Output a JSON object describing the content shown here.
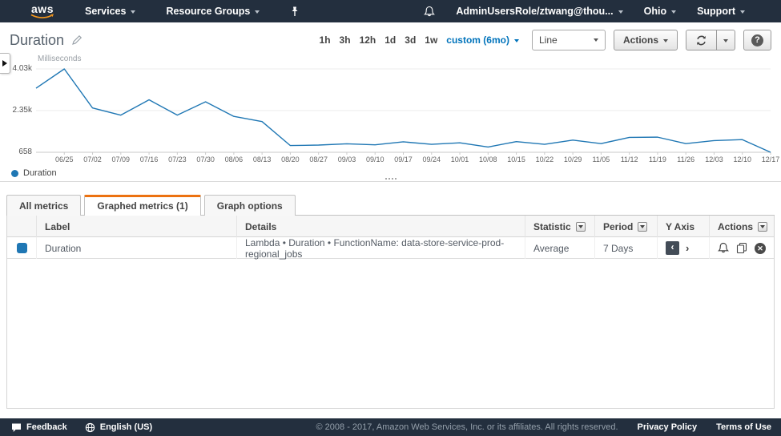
{
  "nav": {
    "logo_text": "aws",
    "services_label": "Services",
    "resource_groups_label": "Resource Groups",
    "user_label": "AdminUsersRole/ztwang@thou...",
    "region_label": "Ohio",
    "support_label": "Support"
  },
  "title": {
    "text": "Duration"
  },
  "toolbar": {
    "ranges": [
      "1h",
      "3h",
      "12h",
      "1d",
      "3d",
      "1w"
    ],
    "custom_label": "custom (6mo)",
    "selected_range": "custom (6mo)",
    "chart_type_value": "Line",
    "actions_label": "Actions"
  },
  "chart_data": {
    "type": "line",
    "title": "Duration",
    "unit_label": "Milliseconds",
    "ylim": [
      658,
      4030
    ],
    "yticks": [
      {
        "label": "4.03k",
        "value": 4030
      },
      {
        "label": "2.35k",
        "value": 2350
      },
      {
        "label": "658",
        "value": 658
      }
    ],
    "x_labels": [
      "06/25",
      "07/02",
      "07/09",
      "07/16",
      "07/23",
      "07/30",
      "08/06",
      "08/13",
      "08/20",
      "08/27",
      "09/03",
      "09/10",
      "09/17",
      "09/24",
      "10/01",
      "10/08",
      "10/15",
      "10/22",
      "10/29",
      "11/05",
      "11/12",
      "11/19",
      "11/26",
      "12/03",
      "12/10",
      "12/17"
    ],
    "first_point_offset_weeks": -1,
    "grid": true,
    "legend_position": "bottom-left",
    "series": [
      {
        "name": "Duration",
        "color": "#1f77b4",
        "values": [
          3250,
          4030,
          2450,
          2160,
          2780,
          2160,
          2700,
          2110,
          1900,
          930,
          950,
          1000,
          960,
          1080,
          980,
          1040,
          870,
          1090,
          980,
          1150,
          1010,
          1260,
          1270,
          1010,
          1130,
          1170,
          658
        ]
      }
    ]
  },
  "tabs": [
    {
      "label": "All metrics",
      "active": false
    },
    {
      "label": "Graphed metrics (1)",
      "active": true
    },
    {
      "label": "Graph options",
      "active": false
    }
  ],
  "table": {
    "columns": {
      "label": "Label",
      "details": "Details",
      "statistic": "Statistic",
      "period": "Period",
      "yaxis": "Y Axis",
      "actions": "Actions"
    },
    "rows": [
      {
        "color": "#1f77b4",
        "label": "Duration",
        "details": "Lambda • Duration • FunctionName: data-store-service-prod-regional_jobs",
        "statistic": "Average",
        "period": "7 Days",
        "yaxis_left": "‹",
        "yaxis_right": "›"
      }
    ]
  },
  "footer": {
    "feedback_label": "Feedback",
    "language_label": "English (US)",
    "copyright": "© 2008 - 2017, Amazon Web Services, Inc. or its affiliates. All rights reserved.",
    "privacy_label": "Privacy Policy",
    "terms_label": "Terms of Use"
  }
}
